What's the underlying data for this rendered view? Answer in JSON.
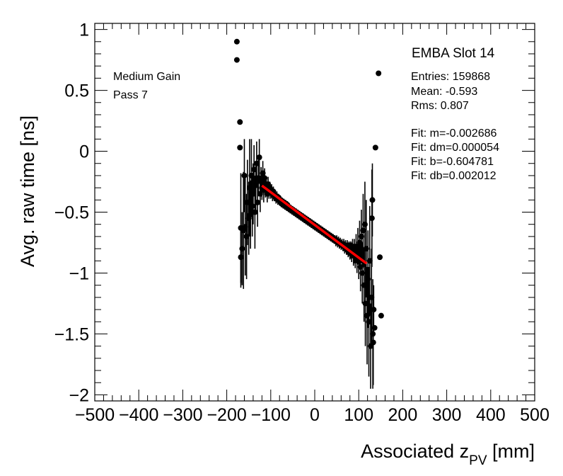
{
  "chart_data": {
    "type": "scatter",
    "title": "",
    "xlabel_main": "Associated z",
    "xlabel_sub": "PV",
    "xlabel_unit": " [mm]",
    "ylabel": "Avg. raw time [ns]",
    "xlim": [
      -500,
      500
    ],
    "ylim": [
      -2.05,
      1.05
    ],
    "xticks": [
      -500,
      -400,
      -300,
      -200,
      -100,
      0,
      100,
      200,
      300,
      400,
      500
    ],
    "xtick_labels": [
      "−500",
      "−400",
      "−300",
      "−200",
      "−100",
      "0",
      "100",
      "200",
      "300",
      "400",
      "500"
    ],
    "yticks": [
      1,
      0.5,
      0,
      -0.5,
      -1,
      -1.5,
      -2
    ],
    "ytick_labels": [
      "1",
      "0.5",
      "0",
      "−0.5",
      "−1",
      "−1.5",
      "−2"
    ],
    "grid": false,
    "annotations": [
      "Medium Gain",
      "Pass 7"
    ],
    "stats_box": {
      "title": "EMBA Slot 14",
      "lines": [
        "Entries: 159868",
        "Mean: -0.593",
        "Rms: 0.807",
        "",
        "Fit: m=-0.002686",
        "Fit: dm=0.000054",
        "Fit: b=-0.604781",
        "Fit: db=0.002012"
      ]
    },
    "fit": {
      "m": -0.002686,
      "b": -0.604781,
      "x_range": [
        -120,
        118
      ],
      "color": "#ff0000"
    },
    "series": [
      {
        "name": "points",
        "points": [
          [
            -177,
            0.9,
            0
          ],
          [
            -177,
            0.75,
            0
          ],
          [
            -170,
            0.24,
            0
          ],
          [
            -170,
            0.03,
            0
          ],
          [
            -168,
            -0.63,
            0.45
          ],
          [
            -168,
            -0.87,
            0.25
          ],
          [
            -165,
            -0.8,
            0.3
          ],
          [
            -162,
            -0.65,
            0.48
          ],
          [
            -160,
            -0.2,
            0.3
          ],
          [
            -158,
            -0.62,
            0.4
          ],
          [
            -155,
            -0.7,
            0.35
          ],
          [
            -153,
            -0.42,
            0.35
          ],
          [
            -150,
            -0.55,
            0.3
          ],
          [
            -148,
            -0.3,
            0.4
          ],
          [
            -146,
            -0.52,
            0.28
          ],
          [
            -144,
            -0.2,
            0.3
          ],
          [
            -142,
            -0.45,
            0.25
          ],
          [
            -140,
            -0.35,
            0.25
          ],
          [
            -138,
            -0.15,
            0.2
          ],
          [
            -136,
            -0.5,
            0.3
          ],
          [
            -134,
            -0.28,
            0.2
          ],
          [
            -132,
            -0.1,
            0.18
          ],
          [
            -130,
            -0.42,
            0.2
          ],
          [
            -128,
            -0.22,
            0.15
          ],
          [
            -126,
            -0.05,
            0.15
          ],
          [
            -124,
            -0.35,
            0.15
          ],
          [
            -122,
            -0.25,
            0.12
          ],
          [
            -120,
            -0.3,
            0.1
          ],
          [
            -118,
            -0.18,
            0.1
          ],
          [
            -116,
            -0.32,
            0.1
          ],
          [
            -114,
            -0.22,
            0.08
          ],
          [
            -112,
            -0.3,
            0.08
          ],
          [
            -110,
            -0.28,
            0.07
          ],
          [
            -108,
            -0.35,
            0.07
          ],
          [
            -106,
            -0.27,
            0.06
          ],
          [
            -104,
            -0.33,
            0.06
          ],
          [
            -102,
            -0.3,
            0.05
          ],
          [
            -100,
            -0.34,
            0.05
          ],
          [
            -98,
            -0.32,
            0.05
          ],
          [
            -96,
            -0.36,
            0.05
          ],
          [
            -94,
            -0.33,
            0.04
          ],
          [
            -92,
            -0.37,
            0.04
          ],
          [
            -90,
            -0.36,
            0.04
          ],
          [
            -88,
            -0.39,
            0.04
          ],
          [
            -86,
            -0.37,
            0.04
          ],
          [
            -84,
            -0.4,
            0.04
          ],
          [
            -82,
            -0.38,
            0.03
          ],
          [
            -80,
            -0.41,
            0.03
          ],
          [
            -78,
            -0.4,
            0.03
          ],
          [
            -76,
            -0.43,
            0.03
          ],
          [
            -74,
            -0.41,
            0.03
          ],
          [
            -72,
            -0.44,
            0.03
          ],
          [
            -70,
            -0.42,
            0.03
          ],
          [
            -68,
            -0.45,
            0.03
          ],
          [
            -66,
            -0.43,
            0.03
          ],
          [
            -64,
            -0.46,
            0.03
          ],
          [
            -62,
            -0.44,
            0.03
          ],
          [
            -60,
            -0.47,
            0.03
          ],
          [
            -58,
            -0.46,
            0.03
          ],
          [
            -56,
            -0.48,
            0.03
          ],
          [
            -54,
            -0.47,
            0.03
          ],
          [
            -52,
            -0.49,
            0.03
          ],
          [
            -50,
            -0.48,
            0.03
          ],
          [
            -48,
            -0.5,
            0.03
          ],
          [
            -46,
            -0.49,
            0.03
          ],
          [
            -44,
            -0.51,
            0.03
          ],
          [
            -42,
            -0.5,
            0.03
          ],
          [
            -40,
            -0.52,
            0.03
          ],
          [
            -38,
            -0.51,
            0.03
          ],
          [
            -36,
            -0.53,
            0.03
          ],
          [
            -34,
            -0.52,
            0.03
          ],
          [
            -32,
            -0.54,
            0.03
          ],
          [
            -30,
            -0.53,
            0.03
          ],
          [
            -28,
            -0.55,
            0.03
          ],
          [
            -26,
            -0.54,
            0.03
          ],
          [
            -24,
            -0.56,
            0.03
          ],
          [
            -22,
            -0.55,
            0.03
          ],
          [
            -20,
            -0.57,
            0.03
          ],
          [
            -18,
            -0.56,
            0.03
          ],
          [
            -16,
            -0.58,
            0.03
          ],
          [
            -14,
            -0.57,
            0.03
          ],
          [
            -12,
            -0.59,
            0.03
          ],
          [
            -10,
            -0.58,
            0.03
          ],
          [
            -8,
            -0.6,
            0.03
          ],
          [
            -6,
            -0.59,
            0.03
          ],
          [
            -4,
            -0.61,
            0.03
          ],
          [
            -2,
            -0.6,
            0.03
          ],
          [
            0,
            -0.62,
            0.03
          ],
          [
            2,
            -0.61,
            0.03
          ],
          [
            4,
            -0.63,
            0.03
          ],
          [
            6,
            -0.62,
            0.03
          ],
          [
            8,
            -0.64,
            0.03
          ],
          [
            10,
            -0.63,
            0.03
          ],
          [
            12,
            -0.65,
            0.03
          ],
          [
            14,
            -0.64,
            0.03
          ],
          [
            16,
            -0.66,
            0.03
          ],
          [
            18,
            -0.65,
            0.03
          ],
          [
            20,
            -0.67,
            0.03
          ],
          [
            22,
            -0.66,
            0.03
          ],
          [
            24,
            -0.68,
            0.03
          ],
          [
            26,
            -0.67,
            0.03
          ],
          [
            28,
            -0.69,
            0.03
          ],
          [
            30,
            -0.68,
            0.03
          ],
          [
            32,
            -0.7,
            0.03
          ],
          [
            34,
            -0.69,
            0.03
          ],
          [
            36,
            -0.71,
            0.03
          ],
          [
            38,
            -0.7,
            0.03
          ],
          [
            40,
            -0.72,
            0.03
          ],
          [
            42,
            -0.71,
            0.03
          ],
          [
            44,
            -0.73,
            0.03
          ],
          [
            46,
            -0.72,
            0.03
          ],
          [
            48,
            -0.74,
            0.04
          ],
          [
            50,
            -0.73,
            0.04
          ],
          [
            52,
            -0.75,
            0.04
          ],
          [
            54,
            -0.74,
            0.04
          ],
          [
            56,
            -0.76,
            0.04
          ],
          [
            58,
            -0.75,
            0.04
          ],
          [
            60,
            -0.77,
            0.04
          ],
          [
            62,
            -0.76,
            0.04
          ],
          [
            64,
            -0.78,
            0.04
          ],
          [
            66,
            -0.77,
            0.05
          ],
          [
            68,
            -0.79,
            0.05
          ],
          [
            70,
            -0.78,
            0.05
          ],
          [
            72,
            -0.8,
            0.05
          ],
          [
            74,
            -0.79,
            0.06
          ],
          [
            76,
            -0.81,
            0.06
          ],
          [
            78,
            -0.8,
            0.06
          ],
          [
            80,
            -0.82,
            0.07
          ],
          [
            82,
            -0.81,
            0.07
          ],
          [
            84,
            -0.83,
            0.08
          ],
          [
            86,
            -0.8,
            0.08
          ],
          [
            88,
            -0.85,
            0.09
          ],
          [
            90,
            -0.82,
            0.1
          ],
          [
            92,
            -0.86,
            0.1
          ],
          [
            94,
            -0.8,
            0.12
          ],
          [
            96,
            -0.88,
            0.12
          ],
          [
            98,
            -0.78,
            0.15
          ],
          [
            100,
            -0.9,
            0.15
          ],
          [
            102,
            -0.75,
            0.18
          ],
          [
            104,
            -0.95,
            0.2
          ],
          [
            106,
            -0.7,
            0.22
          ],
          [
            108,
            -1.0,
            0.25
          ],
          [
            110,
            -0.65,
            0.3
          ],
          [
            112,
            -1.1,
            0.3
          ],
          [
            114,
            -0.6,
            0.35
          ],
          [
            115,
            -1.25,
            0.35
          ],
          [
            117,
            -0.8,
            0.4
          ],
          [
            119,
            -1.35,
            0.4
          ],
          [
            121,
            -1.05,
            0.4
          ],
          [
            123,
            -1.4,
            0.45
          ],
          [
            125,
            -0.9,
            0.45
          ],
          [
            127,
            -1.6,
            0.35
          ],
          [
            129,
            -1.2,
            0.4
          ],
          [
            130,
            -0.55,
            0.4
          ],
          [
            131,
            -0.4,
            0.3
          ],
          [
            132,
            -1.5,
            0.45
          ],
          [
            133,
            -1.57,
            0.35
          ],
          [
            134,
            -1.3,
            0.2
          ],
          [
            136,
            -1.45,
            0
          ],
          [
            145,
            0.64,
            0
          ],
          [
            138,
            0.03,
            0
          ],
          [
            148,
            -0.87,
            0
          ],
          [
            151,
            -1.35,
            0
          ]
        ]
      }
    ]
  }
}
